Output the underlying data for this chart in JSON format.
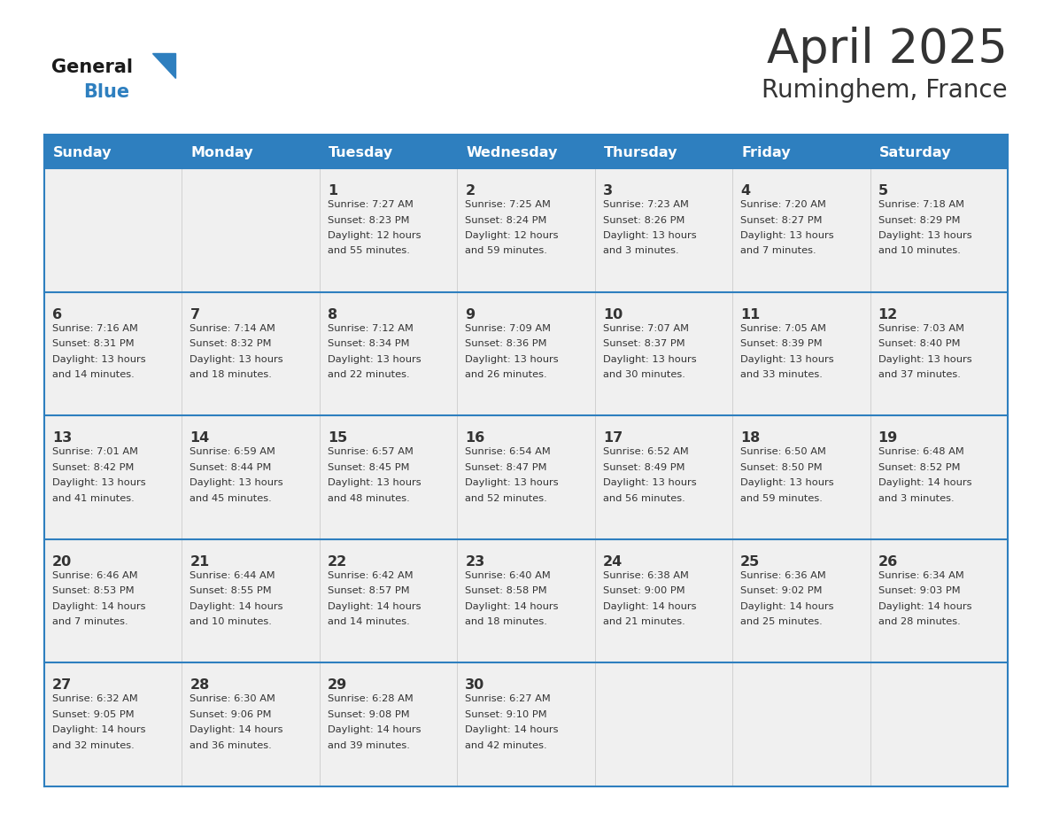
{
  "title": "April 2025",
  "subtitle": "Ruminghem, France",
  "days_of_week": [
    "Sunday",
    "Monday",
    "Tuesday",
    "Wednesday",
    "Thursday",
    "Friday",
    "Saturday"
  ],
  "header_bg": "#2E7FBF",
  "header_text_color": "#FFFFFF",
  "cell_bg_light": "#F0F0F0",
  "border_color": "#2E7FBF",
  "text_color": "#333333",
  "title_color": "#333333",
  "logo_general_color": "#1a1a1a",
  "logo_blue_color": "#2E7FBF",
  "weeks": [
    [
      {
        "day": null,
        "info": null
      },
      {
        "day": null,
        "info": null
      },
      {
        "day": 1,
        "info": "Sunrise: 7:27 AM\nSunset: 8:23 PM\nDaylight: 12 hours\nand 55 minutes."
      },
      {
        "day": 2,
        "info": "Sunrise: 7:25 AM\nSunset: 8:24 PM\nDaylight: 12 hours\nand 59 minutes."
      },
      {
        "day": 3,
        "info": "Sunrise: 7:23 AM\nSunset: 8:26 PM\nDaylight: 13 hours\nand 3 minutes."
      },
      {
        "day": 4,
        "info": "Sunrise: 7:20 AM\nSunset: 8:27 PM\nDaylight: 13 hours\nand 7 minutes."
      },
      {
        "day": 5,
        "info": "Sunrise: 7:18 AM\nSunset: 8:29 PM\nDaylight: 13 hours\nand 10 minutes."
      }
    ],
    [
      {
        "day": 6,
        "info": "Sunrise: 7:16 AM\nSunset: 8:31 PM\nDaylight: 13 hours\nand 14 minutes."
      },
      {
        "day": 7,
        "info": "Sunrise: 7:14 AM\nSunset: 8:32 PM\nDaylight: 13 hours\nand 18 minutes."
      },
      {
        "day": 8,
        "info": "Sunrise: 7:12 AM\nSunset: 8:34 PM\nDaylight: 13 hours\nand 22 minutes."
      },
      {
        "day": 9,
        "info": "Sunrise: 7:09 AM\nSunset: 8:36 PM\nDaylight: 13 hours\nand 26 minutes."
      },
      {
        "day": 10,
        "info": "Sunrise: 7:07 AM\nSunset: 8:37 PM\nDaylight: 13 hours\nand 30 minutes."
      },
      {
        "day": 11,
        "info": "Sunrise: 7:05 AM\nSunset: 8:39 PM\nDaylight: 13 hours\nand 33 minutes."
      },
      {
        "day": 12,
        "info": "Sunrise: 7:03 AM\nSunset: 8:40 PM\nDaylight: 13 hours\nand 37 minutes."
      }
    ],
    [
      {
        "day": 13,
        "info": "Sunrise: 7:01 AM\nSunset: 8:42 PM\nDaylight: 13 hours\nand 41 minutes."
      },
      {
        "day": 14,
        "info": "Sunrise: 6:59 AM\nSunset: 8:44 PM\nDaylight: 13 hours\nand 45 minutes."
      },
      {
        "day": 15,
        "info": "Sunrise: 6:57 AM\nSunset: 8:45 PM\nDaylight: 13 hours\nand 48 minutes."
      },
      {
        "day": 16,
        "info": "Sunrise: 6:54 AM\nSunset: 8:47 PM\nDaylight: 13 hours\nand 52 minutes."
      },
      {
        "day": 17,
        "info": "Sunrise: 6:52 AM\nSunset: 8:49 PM\nDaylight: 13 hours\nand 56 minutes."
      },
      {
        "day": 18,
        "info": "Sunrise: 6:50 AM\nSunset: 8:50 PM\nDaylight: 13 hours\nand 59 minutes."
      },
      {
        "day": 19,
        "info": "Sunrise: 6:48 AM\nSunset: 8:52 PM\nDaylight: 14 hours\nand 3 minutes."
      }
    ],
    [
      {
        "day": 20,
        "info": "Sunrise: 6:46 AM\nSunset: 8:53 PM\nDaylight: 14 hours\nand 7 minutes."
      },
      {
        "day": 21,
        "info": "Sunrise: 6:44 AM\nSunset: 8:55 PM\nDaylight: 14 hours\nand 10 minutes."
      },
      {
        "day": 22,
        "info": "Sunrise: 6:42 AM\nSunset: 8:57 PM\nDaylight: 14 hours\nand 14 minutes."
      },
      {
        "day": 23,
        "info": "Sunrise: 6:40 AM\nSunset: 8:58 PM\nDaylight: 14 hours\nand 18 minutes."
      },
      {
        "day": 24,
        "info": "Sunrise: 6:38 AM\nSunset: 9:00 PM\nDaylight: 14 hours\nand 21 minutes."
      },
      {
        "day": 25,
        "info": "Sunrise: 6:36 AM\nSunset: 9:02 PM\nDaylight: 14 hours\nand 25 minutes."
      },
      {
        "day": 26,
        "info": "Sunrise: 6:34 AM\nSunset: 9:03 PM\nDaylight: 14 hours\nand 28 minutes."
      }
    ],
    [
      {
        "day": 27,
        "info": "Sunrise: 6:32 AM\nSunset: 9:05 PM\nDaylight: 14 hours\nand 32 minutes."
      },
      {
        "day": 28,
        "info": "Sunrise: 6:30 AM\nSunset: 9:06 PM\nDaylight: 14 hours\nand 36 minutes."
      },
      {
        "day": 29,
        "info": "Sunrise: 6:28 AM\nSunset: 9:08 PM\nDaylight: 14 hours\nand 39 minutes."
      },
      {
        "day": 30,
        "info": "Sunrise: 6:27 AM\nSunset: 9:10 PM\nDaylight: 14 hours\nand 42 minutes."
      },
      {
        "day": null,
        "info": null
      },
      {
        "day": null,
        "info": null
      },
      {
        "day": null,
        "info": null
      }
    ]
  ]
}
